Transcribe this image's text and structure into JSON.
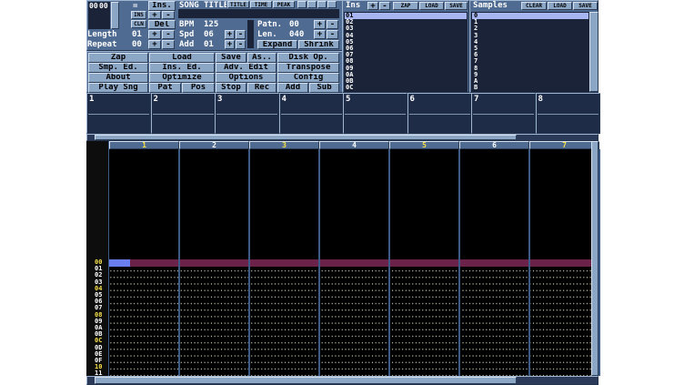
{
  "position": {
    "pos": "00",
    "pattern": "00"
  },
  "song": {
    "title_label": "SONG TITLE:",
    "tabs": [
      "TITLE",
      "TIME",
      "PEAK"
    ]
  },
  "controls": {
    "eq": "=",
    "ins_btn": "Ins.",
    "ins_small": "INS",
    "cln": "CLN",
    "del": "Del",
    "plus": "+",
    "minus": "-",
    "bpm_label": "BPM",
    "bpm": "125",
    "spd_label": "Spd",
    "spd": "06",
    "add_label": "Add",
    "add": "01",
    "length_label": "Length",
    "length": "01",
    "repeat_label": "Repeat",
    "repeat": "00",
    "patn_label": "Patn.",
    "patn": "00",
    "len_label": "Len.",
    "len": "040",
    "expand": "Expand",
    "shrink": "Shrink"
  },
  "buttons": [
    [
      "Zap",
      "Load",
      "Save",
      "As..",
      "Disk Op."
    ],
    [
      "Smp. Ed.",
      "Ins. Ed.",
      "Adv. Edit",
      "Transpose"
    ],
    [
      "About",
      "Optimize",
      "Options",
      "Config"
    ],
    [
      "Play Sng",
      "Pat",
      "Pos",
      "Stop",
      "Rec",
      "Add",
      "Sub"
    ]
  ],
  "instruments": {
    "title": "Ins",
    "buttons": [
      "+",
      "-",
      "ZAP",
      "LOAD",
      "SAVE"
    ],
    "items": [
      "01",
      "02",
      "03",
      "04",
      "05",
      "06",
      "07",
      "08",
      "09",
      "0A",
      "0B",
      "0C"
    ]
  },
  "samples": {
    "title": "Samples",
    "buttons": [
      "CLEAR",
      "LOAD",
      "SAVE"
    ],
    "items": [
      "0",
      "1",
      "2",
      "3",
      "4",
      "5",
      "6",
      "7",
      "8",
      "9",
      "A",
      "B"
    ]
  },
  "scopes": [
    "1",
    "2",
    "3",
    "4",
    "5",
    "6",
    "7",
    "8"
  ],
  "channels": [
    "1",
    "2",
    "3",
    "4",
    "5",
    "6",
    "7"
  ],
  "rows": [
    "00",
    "01",
    "02",
    "03",
    "04",
    "05",
    "06",
    "07",
    "08",
    "09",
    "0A",
    "0B",
    "0C",
    "0D",
    "0E",
    "0F",
    "10",
    "11"
  ]
}
